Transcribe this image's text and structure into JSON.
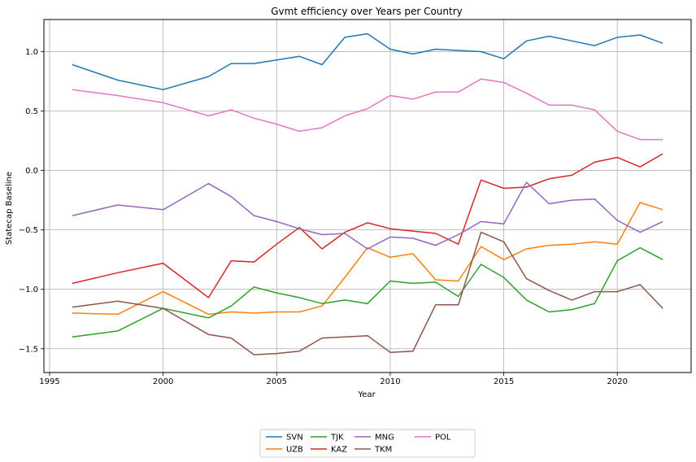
{
  "chart_data": {
    "type": "line",
    "title": "Gvmt efficiency over Years per Country",
    "xlabel": "Year",
    "ylabel": "Statecap Baseline",
    "xlim": [
      1994.75,
      2023.25
    ],
    "ylim": [
      -1.7,
      1.27
    ],
    "xticks": [
      1995,
      2000,
      2005,
      2010,
      2015,
      2020
    ],
    "yticks": [
      -1.5,
      -1.0,
      -0.5,
      0.0,
      0.5,
      1.0
    ],
    "ytick_labels": [
      "−1.5",
      "−1.0",
      "−0.5",
      "0.0",
      "0.5",
      "1.0"
    ],
    "grid": true,
    "legend_position": "bottom-center",
    "x": [
      1996,
      1998,
      2000,
      2002,
      2003,
      2004,
      2005,
      2006,
      2007,
      2008,
      2009,
      2010,
      2011,
      2012,
      2013,
      2014,
      2015,
      2016,
      2017,
      2018,
      2019,
      2020,
      2021,
      2022
    ],
    "series": [
      {
        "name": "SVN",
        "color": "#1f77b4",
        "values": [
          0.89,
          0.76,
          0.68,
          0.79,
          0.9,
          0.9,
          0.93,
          0.96,
          0.89,
          1.12,
          1.15,
          1.02,
          0.98,
          1.02,
          1.01,
          1.0,
          0.94,
          1.09,
          1.13,
          1.09,
          1.05,
          1.12,
          1.14,
          1.07
        ]
      },
      {
        "name": "UZB",
        "color": "#ff7f0e",
        "values": [
          -1.2,
          -1.21,
          -1.02,
          -1.21,
          -1.19,
          -1.2,
          -1.19,
          -1.19,
          -1.14,
          -0.9,
          -0.65,
          -0.73,
          -0.7,
          -0.92,
          -0.93,
          -0.64,
          -0.75,
          -0.66,
          -0.63,
          -0.62,
          -0.6,
          -0.62,
          -0.27,
          -0.33
        ]
      },
      {
        "name": "TJK",
        "color": "#2ca02c",
        "values": [
          -1.4,
          -1.35,
          -1.16,
          -1.24,
          -1.14,
          -0.98,
          -1.03,
          -1.07,
          -1.12,
          -1.09,
          -1.12,
          -0.93,
          -0.95,
          -0.94,
          -1.06,
          -0.79,
          -0.9,
          -1.09,
          -1.19,
          -1.17,
          -1.12,
          -0.76,
          -0.65,
          -0.75
        ]
      },
      {
        "name": "KAZ",
        "color": "#d62728",
        "values": [
          -0.95,
          -0.86,
          -0.78,
          -1.07,
          -0.76,
          -0.77,
          -0.62,
          -0.48,
          -0.66,
          -0.52,
          -0.44,
          -0.49,
          -0.51,
          -0.53,
          -0.62,
          -0.08,
          -0.15,
          -0.14,
          -0.07,
          -0.04,
          0.07,
          0.11,
          0.03,
          0.14
        ]
      },
      {
        "name": "MNG",
        "color": "#9467bd",
        "values": [
          -0.38,
          -0.29,
          -0.33,
          -0.11,
          -0.22,
          -0.38,
          -0.43,
          -0.49,
          -0.54,
          -0.53,
          -0.66,
          -0.56,
          -0.57,
          -0.63,
          -0.54,
          -0.43,
          -0.45,
          -0.1,
          -0.28,
          -0.25,
          -0.24,
          -0.42,
          -0.52,
          -0.43
        ]
      },
      {
        "name": "TKM",
        "color": "#8c564b",
        "values": [
          -1.15,
          -1.1,
          -1.16,
          -1.38,
          -1.41,
          -1.55,
          -1.54,
          -1.52,
          -1.41,
          -1.4,
          -1.39,
          -1.53,
          -1.52,
          -1.13,
          -1.13,
          -0.52,
          -0.6,
          -0.91,
          -1.01,
          -1.09,
          -1.02,
          -1.02,
          -0.96,
          -1.16
        ]
      },
      {
        "name": "POL",
        "color": "#e377c2",
        "values": [
          0.68,
          0.63,
          0.57,
          0.46,
          0.51,
          0.44,
          0.39,
          0.33,
          0.36,
          0.46,
          0.52,
          0.63,
          0.6,
          0.66,
          0.66,
          0.77,
          0.74,
          0.65,
          0.55,
          0.55,
          0.51,
          0.33,
          0.26,
          0.26
        ]
      }
    ]
  }
}
